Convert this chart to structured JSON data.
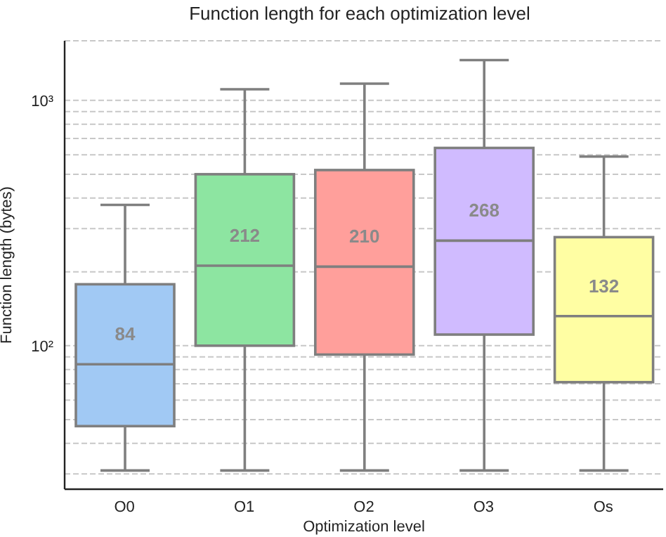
{
  "chart_data": {
    "type": "box",
    "title": "Function length for each optimization level",
    "xlabel": "Optimization level",
    "ylabel": "Function length (bytes)",
    "categories": [
      "O0",
      "O1",
      "O2",
      "O3",
      "Os"
    ],
    "colors": [
      "#a1c9f4",
      "#8de5a1",
      "#ff9f9b",
      "#d0bbff",
      "#fffea3"
    ],
    "boxes": [
      {
        "low": 31,
        "q1": 47,
        "median": 84,
        "q3": 178,
        "high": 375
      },
      {
        "low": 31,
        "q1": 100,
        "median": 212,
        "q3": 500,
        "high": 1110
      },
      {
        "low": 31,
        "q1": 92,
        "median": 210,
        "q3": 520,
        "high": 1170
      },
      {
        "low": 31,
        "q1": 111,
        "median": 268,
        "q3": 640,
        "high": 1460
      },
      {
        "low": 31,
        "q1": 71,
        "median": 132,
        "q3": 277,
        "high": 590
      }
    ],
    "value_labels": [
      "84",
      "212",
      "210",
      "268",
      "132"
    ],
    "log": "y",
    "ylim": [
      26,
      1750
    ],
    "yticks": [
      {
        "value": 30,
        "label": null
      },
      {
        "value": 40,
        "label": null
      },
      {
        "value": 50,
        "label": null
      },
      {
        "value": 60,
        "label": null
      },
      {
        "value": 70,
        "label": null
      },
      {
        "value": 80,
        "label": null
      },
      {
        "value": 90,
        "label": null
      },
      {
        "value": 100,
        "label": "10²"
      },
      {
        "value": 200,
        "label": null
      },
      {
        "value": 300,
        "label": null
      },
      {
        "value": 400,
        "label": null
      },
      {
        "value": 500,
        "label": null
      },
      {
        "value": 600,
        "label": null
      },
      {
        "value": 700,
        "label": null
      },
      {
        "value": 800,
        "label": null
      },
      {
        "value": 900,
        "label": null
      },
      {
        "value": 1000,
        "label": "10³"
      }
    ],
    "grid": "y"
  }
}
